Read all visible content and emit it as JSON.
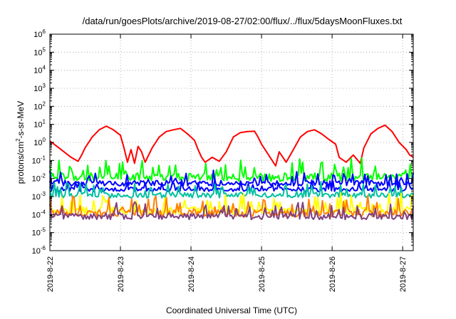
{
  "chart_data": {
    "type": "line",
    "title": "/data/run/goesPlots/archive/2019-08-27/02:00/flux/../flux/5daysMoonFluxes.txt",
    "xlabel": "Coordinated Universal Time (UTC)",
    "ylabel": {
      "base": "protons/cm",
      "sup": "2",
      "rest": "-s-sr-MeV"
    },
    "yscale": "log",
    "ylim_exponent": [
      -6,
      6
    ],
    "ytick_exponents": [
      -6,
      -5,
      -4,
      -3,
      -2,
      -1,
      0,
      1,
      2,
      3,
      4,
      5,
      6
    ],
    "xlim_days": [
      22.0,
      27.15
    ],
    "xticks": [
      {
        "day": 22,
        "label": "2019-8-22"
      },
      {
        "day": 23,
        "label": "2019-8-23"
      },
      {
        "day": 24,
        "label": "2019-8-24"
      },
      {
        "day": 25,
        "label": "2019-8-25"
      },
      {
        "day": 26,
        "label": "2019-8-26"
      },
      {
        "day": 27,
        "label": "2019-8-27"
      }
    ],
    "grid": true,
    "legend": "none",
    "series": [
      {
        "color": "#ff0000",
        "points": [
          [
            22.0,
            1.2
          ],
          [
            22.1,
            0.6
          ],
          [
            22.2,
            0.3
          ],
          [
            22.3,
            0.15
          ],
          [
            22.4,
            0.09
          ],
          [
            22.45,
            0.2
          ],
          [
            22.5,
            0.5
          ],
          [
            22.6,
            2
          ],
          [
            22.7,
            5
          ],
          [
            22.8,
            8
          ],
          [
            22.9,
            5
          ],
          [
            23.0,
            2.5
          ],
          [
            23.05,
            0.5
          ],
          [
            23.1,
            0.08
          ],
          [
            23.15,
            0.4
          ],
          [
            23.2,
            0.07
          ],
          [
            23.25,
            0.6
          ],
          [
            23.3,
            0.3
          ],
          [
            23.35,
            0.08
          ],
          [
            23.45,
            0.5
          ],
          [
            23.55,
            2
          ],
          [
            23.65,
            4
          ],
          [
            23.75,
            5
          ],
          [
            23.85,
            6
          ],
          [
            23.95,
            3
          ],
          [
            24.05,
            1.3
          ],
          [
            24.1,
            0.4
          ],
          [
            24.15,
            0.15
          ],
          [
            24.2,
            0.08
          ],
          [
            24.3,
            0.15
          ],
          [
            24.4,
            0.09
          ],
          [
            24.5,
            0.3
          ],
          [
            24.6,
            2
          ],
          [
            24.7,
            3.5
          ],
          [
            24.8,
            4
          ],
          [
            24.9,
            4.2
          ],
          [
            24.95,
            2
          ],
          [
            25.0,
            0.8
          ],
          [
            25.1,
            0.2
          ],
          [
            25.2,
            0.05
          ],
          [
            25.25,
            0.3
          ],
          [
            25.35,
            0.08
          ],
          [
            25.45,
            0.4
          ],
          [
            25.55,
            2
          ],
          [
            25.65,
            4
          ],
          [
            25.75,
            5
          ],
          [
            25.85,
            3
          ],
          [
            25.95,
            1.5
          ],
          [
            26.05,
            0.8
          ],
          [
            26.1,
            0.15
          ],
          [
            26.2,
            0.08
          ],
          [
            26.3,
            0.2
          ],
          [
            26.4,
            0.07
          ],
          [
            26.45,
            0.5
          ],
          [
            26.55,
            3
          ],
          [
            26.65,
            6
          ],
          [
            26.75,
            9
          ],
          [
            26.85,
            4
          ],
          [
            26.95,
            1
          ],
          [
            27.05,
            0.4
          ],
          [
            27.1,
            0.2
          ],
          [
            27.15,
            0.15
          ]
        ]
      },
      {
        "color": "#00ff00",
        "baseline": 0.012,
        "noise": 2.5
      },
      {
        "color": "#0000ff",
        "baseline": 0.0055,
        "noise": 1.8
      },
      {
        "color": "#0000ff",
        "baseline": 0.0025,
        "noise": 1.6
      },
      {
        "color": "#00c0a0",
        "baseline": 0.0012,
        "noise": 1.8
      },
      {
        "color": "#ffff00",
        "baseline": 0.00017,
        "noise": 2.2
      },
      {
        "color": "#ff8000",
        "baseline": 0.00012,
        "noise": 2.2
      },
      {
        "color": "#7f3f7f",
        "baseline": 8e-05,
        "noise": 2.0
      }
    ]
  }
}
